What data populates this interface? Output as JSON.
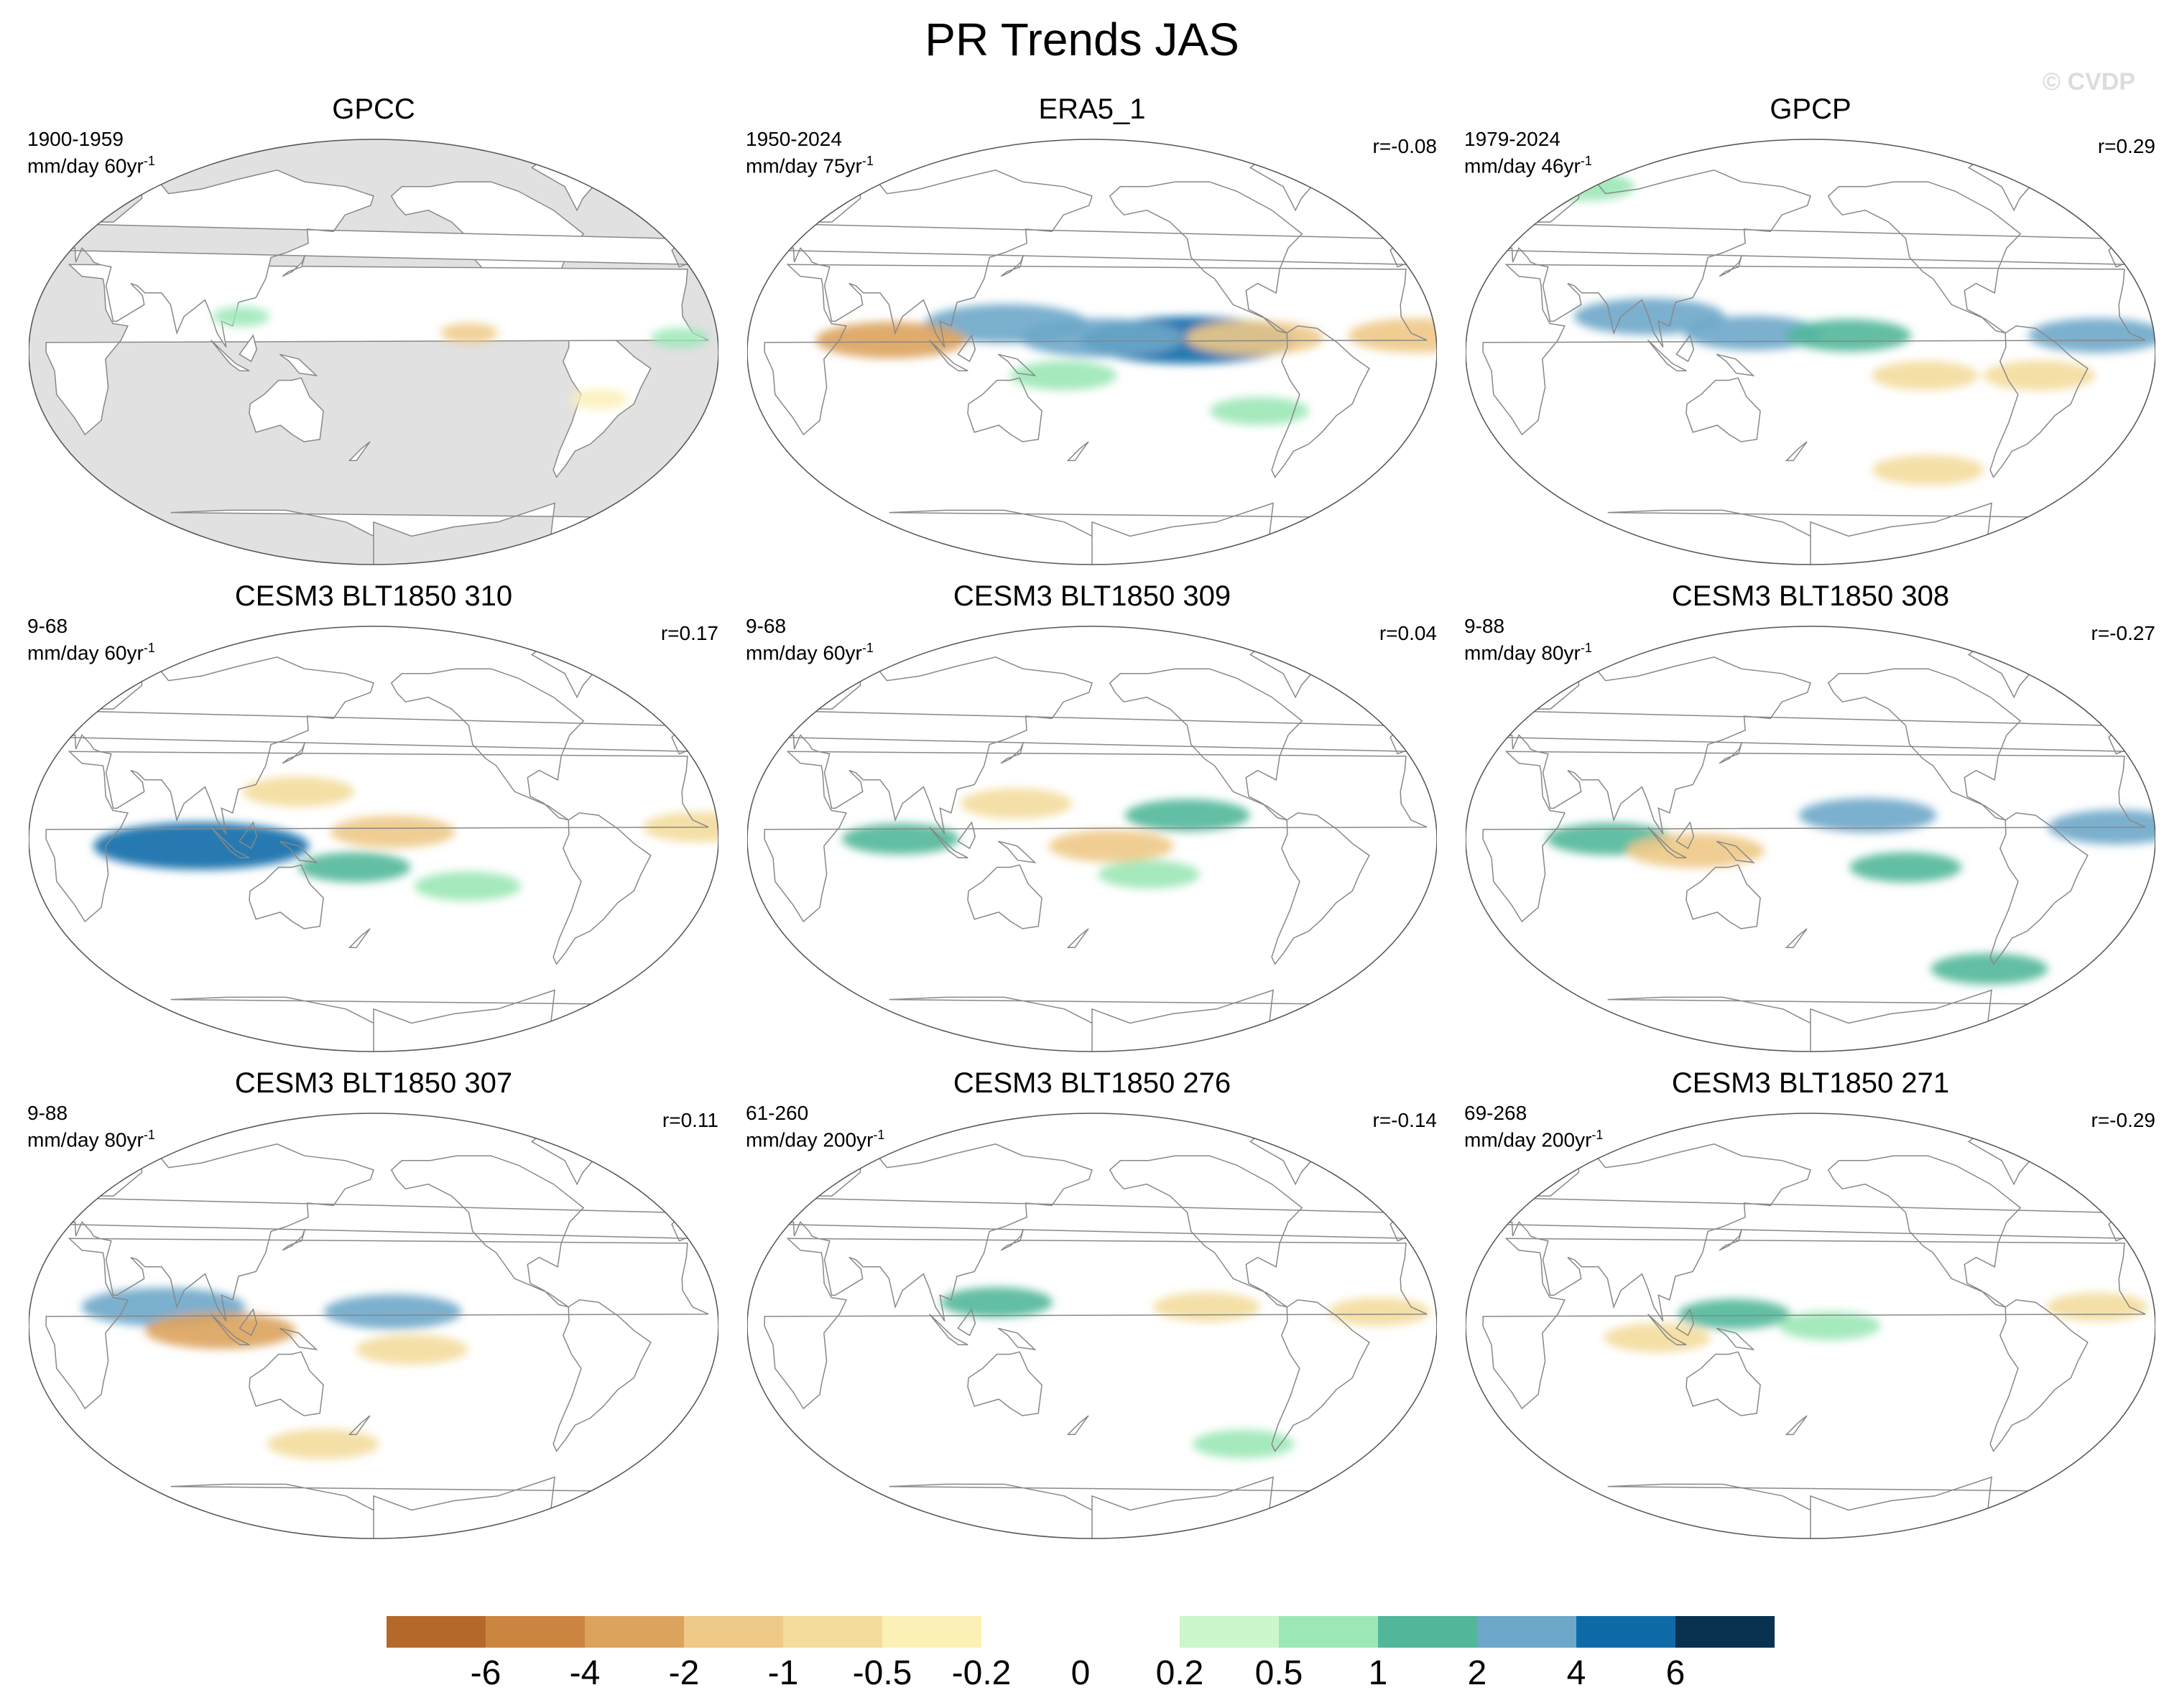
{
  "title": "PR Trends JAS",
  "watermark": "© CVDP",
  "chart_data": {
    "type": "map-panels",
    "variable": "PR",
    "season": "JAS",
    "projection": "Robinson (Pacific-centered)",
    "panels": [
      {
        "name": "GPCC",
        "period": "1900-1959",
        "units": "mm/day 60yr",
        "unit_exp": "-1",
        "corr": "",
        "land_only": true,
        "features": [
          {
            "lon": -130,
            "lat": 8,
            "value": -1.5
          },
          {
            "lon": -20,
            "lat": 6,
            "value": 0.6
          },
          {
            "lon": 110,
            "lat": 15,
            "value": 0.8
          },
          {
            "lon": -60,
            "lat": -20,
            "value": -0.4
          }
        ]
      },
      {
        "name": "ERA5_1",
        "period": "1950-2024",
        "units": "mm/day 75yr",
        "unit_exp": "-1",
        "corr": "r=-0.08",
        "land_only": false,
        "features": [
          {
            "lon": -130,
            "lat": 5,
            "value": 5
          },
          {
            "lon": -175,
            "lat": 6,
            "value": 3
          },
          {
            "lon": 135,
            "lat": 12,
            "value": 3
          },
          {
            "lon": 75,
            "lat": 5,
            "value": -2.5
          },
          {
            "lon": -95,
            "lat": 6,
            "value": -2
          },
          {
            "lon": 165,
            "lat": -10,
            "value": 0.8
          },
          {
            "lon": -10,
            "lat": 7,
            "value": -2
          },
          {
            "lon": -90,
            "lat": -25,
            "value": 0.5
          }
        ]
      },
      {
        "name": "GPCP",
        "period": "1979-2024",
        "units": "mm/day 46yr",
        "unit_exp": "-1",
        "corr": "r=0.29",
        "land_only": false,
        "features": [
          {
            "lon": 95,
            "lat": 15,
            "value": 2.5
          },
          {
            "lon": 150,
            "lat": 8,
            "value": 2
          },
          {
            "lon": -160,
            "lat": 7,
            "value": 1.5
          },
          {
            "lon": -30,
            "lat": 7,
            "value": 2
          },
          {
            "lon": -120,
            "lat": -10,
            "value": -0.8
          },
          {
            "lon": -60,
            "lat": -10,
            "value": -1
          },
          {
            "lon": -110,
            "lat": -50,
            "value": -1
          },
          {
            "lon": 20,
            "lat": 70,
            "value": 0.6
          }
        ]
      },
      {
        "name": "CESM3 BLT1850 310",
        "period": "9-68",
        "units": "mm/day 60yr",
        "unit_exp": "-1",
        "corr": "r=0.17",
        "land_only": false,
        "features": [
          {
            "lon": 90,
            "lat": -3,
            "value": 5
          },
          {
            "lon": -170,
            "lat": 3,
            "value": -1.5
          },
          {
            "lon": 140,
            "lat": 20,
            "value": -1
          },
          {
            "lon": -130,
            "lat": -20,
            "value": 0.8
          },
          {
            "lon": 170,
            "lat": -12,
            "value": 1
          },
          {
            "lon": -10,
            "lat": 5,
            "value": -1
          }
        ]
      },
      {
        "name": "CESM3 BLT1850 309",
        "period": "9-68",
        "units": "mm/day 60yr",
        "unit_exp": "-1",
        "corr": "r=0.04",
        "land_only": false,
        "features": [
          {
            "lon": -130,
            "lat": 10,
            "value": 1.5
          },
          {
            "lon": 80,
            "lat": 0,
            "value": 1.2
          },
          {
            "lon": -170,
            "lat": -3,
            "value": -1.5
          },
          {
            "lon": 140,
            "lat": 15,
            "value": -1
          },
          {
            "lon": -150,
            "lat": -15,
            "value": 0.6
          }
        ]
      },
      {
        "name": "CESM3 BLT1850 308",
        "period": "9-88",
        "units": "mm/day 80yr",
        "unit_exp": "-1",
        "corr": "r=-0.27",
        "land_only": false,
        "features": [
          {
            "lon": -150,
            "lat": 10,
            "value": 2
          },
          {
            "lon": 75,
            "lat": 0,
            "value": 1.5
          },
          {
            "lon": 120,
            "lat": -5,
            "value": -2
          },
          {
            "lon": -20,
            "lat": 5,
            "value": 2
          },
          {
            "lon": -130,
            "lat": -12,
            "value": 1
          },
          {
            "lon": -70,
            "lat": -55,
            "value": 1.2
          }
        ]
      },
      {
        "name": "CESM3 BLT1850 307",
        "period": "9-88",
        "units": "mm/day 80yr",
        "unit_exp": "-1",
        "corr": "r=0.11",
        "land_only": false,
        "features": [
          {
            "lon": 70,
            "lat": 8,
            "value": 3
          },
          {
            "lon": -170,
            "lat": 6,
            "value": 2
          },
          {
            "lon": 100,
            "lat": -2,
            "value": -2.5
          },
          {
            "lon": -160,
            "lat": -10,
            "value": -1
          },
          {
            "lon": 150,
            "lat": -50,
            "value": -1
          }
        ]
      },
      {
        "name": "CESM3 BLT1850 276",
        "period": "61-260",
        "units": "mm/day 200yr",
        "unit_exp": "-1",
        "corr": "r=-0.14",
        "land_only": false,
        "features": [
          {
            "lon": -120,
            "lat": 8,
            "value": -0.8
          },
          {
            "lon": 130,
            "lat": 10,
            "value": 1
          },
          {
            "lon": -30,
            "lat": 6,
            "value": -0.6
          },
          {
            "lon": -90,
            "lat": -50,
            "value": 0.6
          }
        ]
      },
      {
        "name": "CESM3 BLT1850 271",
        "period": "69-268",
        "units": "mm/day 200yr",
        "unit_exp": "-1",
        "corr": "r=-0.29",
        "land_only": false,
        "features": [
          {
            "lon": 140,
            "lat": 5,
            "value": 1
          },
          {
            "lon": -170,
            "lat": 0,
            "value": 0.6
          },
          {
            "lon": 100,
            "lat": -5,
            "value": -0.8
          },
          {
            "lon": -30,
            "lat": 8,
            "value": -0.6
          }
        ]
      }
    ],
    "colorbar": {
      "levels": [
        "-6",
        "-4",
        "-2",
        "-1",
        "-0.5",
        "-0.2",
        "0",
        "0.2",
        "0.5",
        "1",
        "2",
        "4",
        "6"
      ],
      "colors": [
        "#b4692a",
        "#cc8540",
        "#dca35d",
        "#eec987",
        "#f3dc9c",
        "#fbf0b6",
        "#ffffff",
        "#ffffff",
        "#ccf6cc",
        "#9be7b6",
        "#52b79a",
        "#6da7c9",
        "#0f6ba8",
        "#08324f"
      ]
    },
    "colors": {
      "land_mask": "#e1e1e1",
      "coast": "#888888"
    }
  }
}
